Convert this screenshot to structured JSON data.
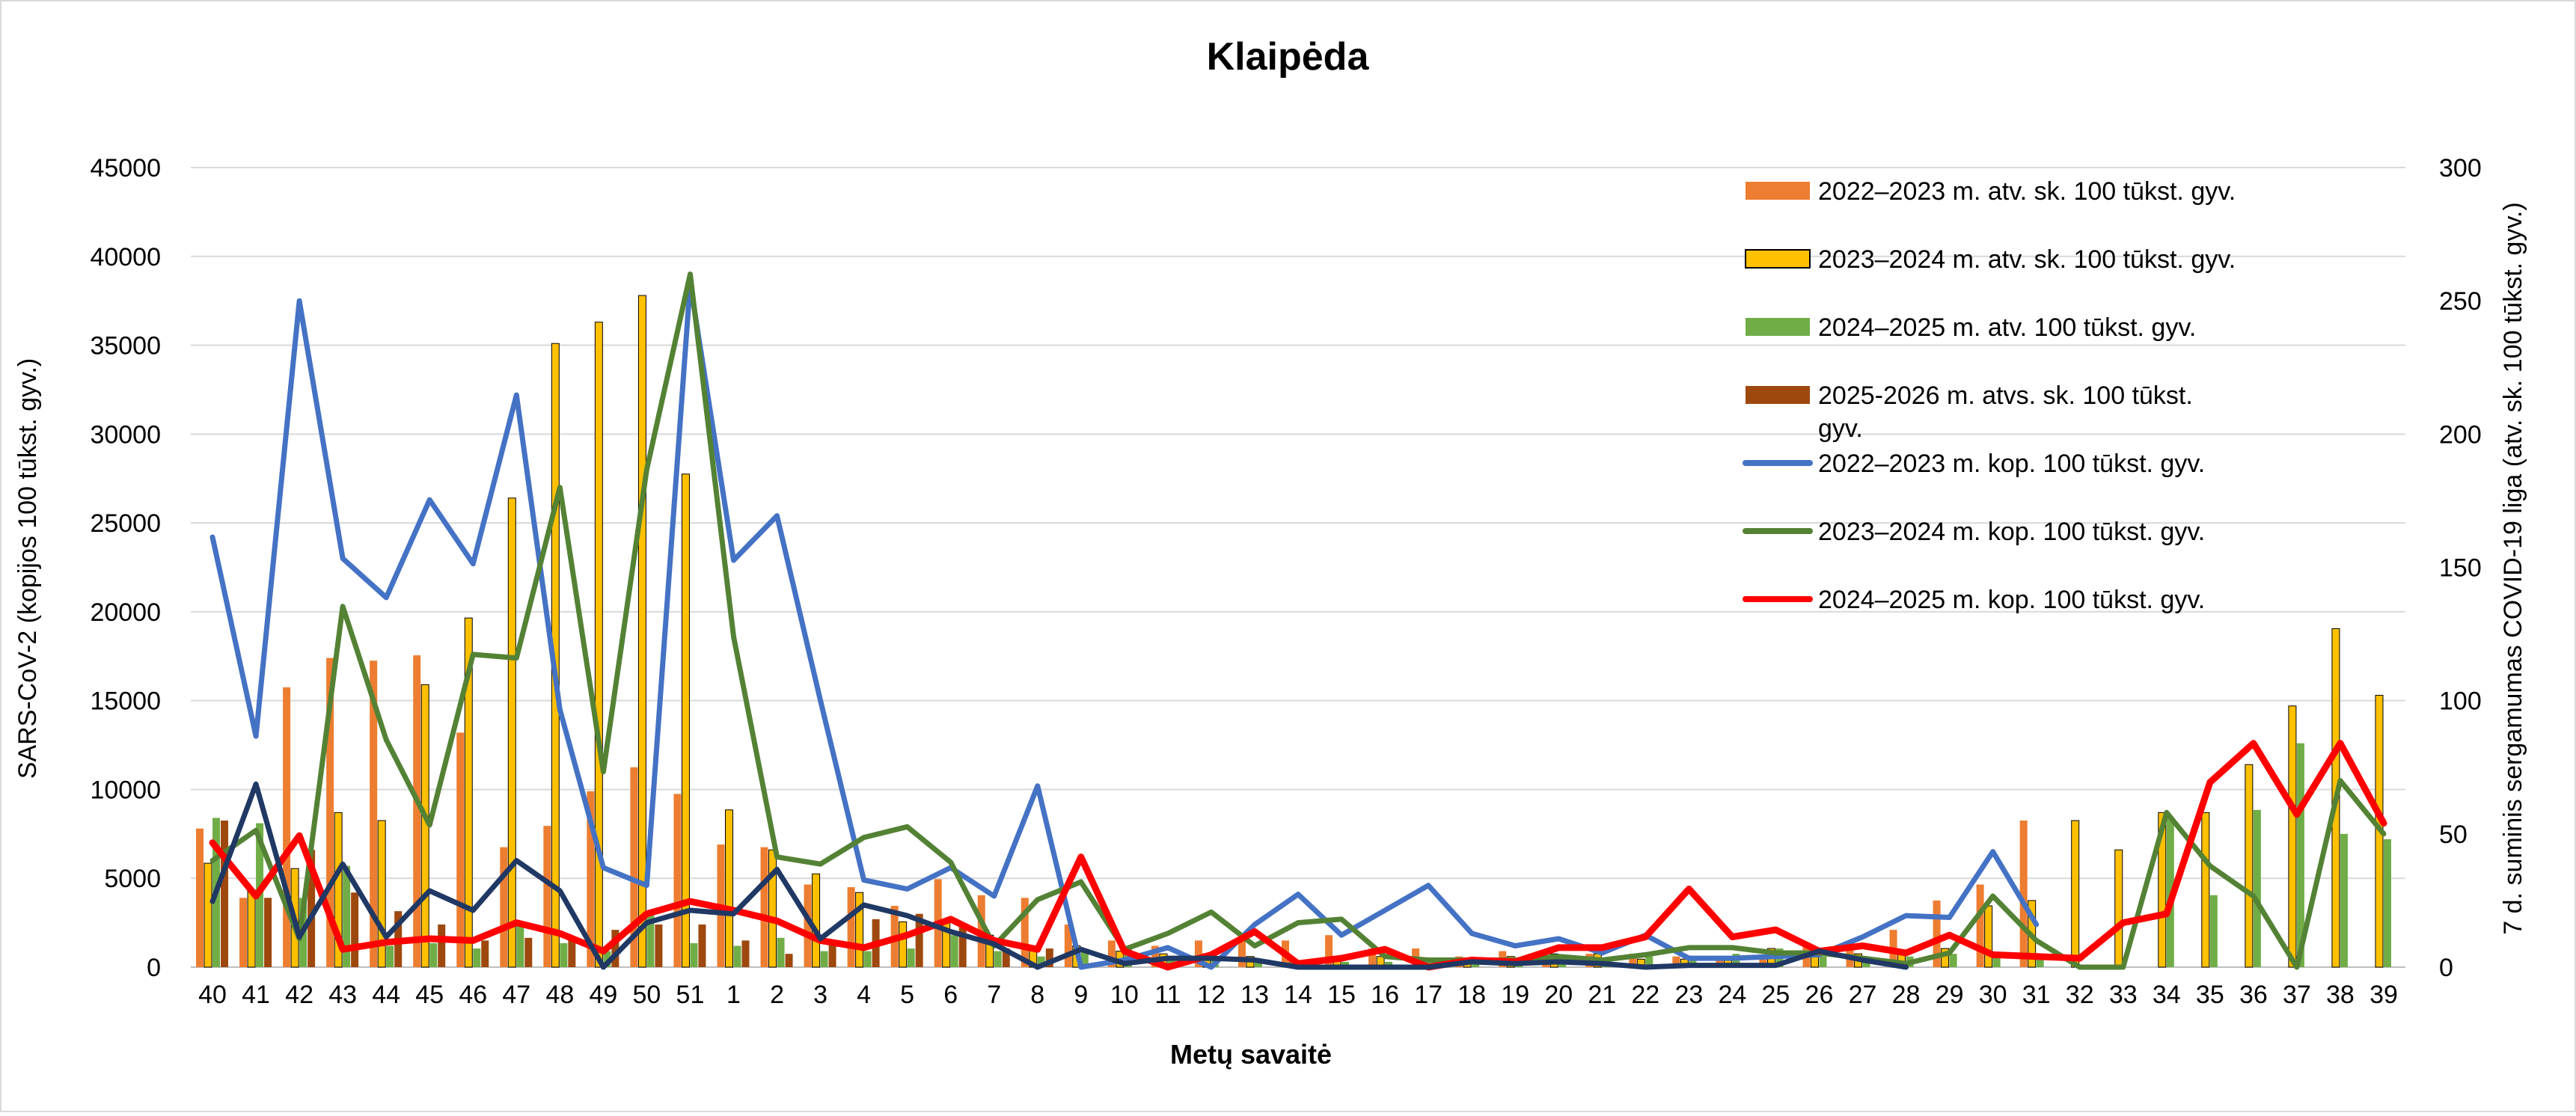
{
  "chart_data": {
    "type": "bar",
    "title": "Klaipėda",
    "xlabel": "Metų savaitė",
    "ylabel_left": "SARS-CoV-2  (kopijos 100 tūkst. gyv.)",
    "ylabel_right": "7 d. suminis sergamumas COVID-19 liga (atv. sk. 100 tūkst. gyv.)",
    "ylim_left": [
      0,
      45000
    ],
    "ylim_right": [
      0,
      300
    ],
    "yticks_left": [
      "0",
      "5000",
      "10000",
      "15000",
      "20000",
      "25000",
      "30000",
      "35000",
      "40000",
      "45000"
    ],
    "yticks_right": [
      "0",
      "50",
      "100",
      "150",
      "200",
      "250",
      "300"
    ],
    "grid": true,
    "legend_position": "top-right",
    "categories": [
      "40",
      "41",
      "42",
      "43",
      "44",
      "45",
      "46",
      "47",
      "48",
      "49",
      "50",
      "51",
      "1",
      "2",
      "3",
      "4",
      "5",
      "6",
      "7",
      "8",
      "9",
      "10",
      "11",
      "12",
      "13",
      "14",
      "15",
      "16",
      "17",
      "18",
      "19",
      "20",
      "21",
      "22",
      "23",
      "24",
      "25",
      "26",
      "27",
      "28",
      "29",
      "30",
      "31",
      "32",
      "33",
      "34",
      "35",
      "36",
      "37",
      "38",
      "39"
    ],
    "bar_series": [
      {
        "name": "2022–2023 m. atv. sk. 100 tūkst. gyv.",
        "color": "#ED7D31",
        "axis": "right",
        "values": [
          52,
          26,
          105,
          116,
          115,
          117,
          88,
          45,
          53,
          66,
          75,
          65,
          46,
          45,
          31,
          30,
          23,
          33,
          27,
          26,
          16,
          10,
          8,
          10,
          11,
          10,
          12,
          7,
          7,
          4,
          6,
          3,
          5,
          5,
          4,
          3,
          3,
          8,
          8,
          14,
          25,
          31,
          55,
          null,
          null,
          null,
          null,
          null,
          null,
          null,
          null
        ]
      },
      {
        "name": "2023–2024 m. atv. sk. 100 tūkst. gyv.",
        "color": "#FFC000",
        "axis": "right",
        "values": [
          39,
          29,
          37,
          58,
          55,
          106,
          131,
          176,
          234,
          242,
          252,
          185,
          59,
          44,
          35,
          28,
          17,
          18,
          12,
          7,
          8,
          6,
          5,
          5,
          4,
          2,
          3,
          4,
          2,
          2,
          4,
          5,
          5,
          3,
          3,
          3,
          7,
          6,
          5,
          6,
          7,
          23,
          25,
          55,
          44,
          58,
          58,
          76,
          98,
          127,
          102
        ]
      },
      {
        "name": "2024–2025 m. atv. 100 tūkst. gyv.",
        "color": "#70AD47",
        "axis": "right",
        "values": [
          56,
          54,
          26,
          38,
          8,
          9,
          7,
          16,
          9,
          6,
          21,
          9,
          8,
          11,
          6,
          6,
          7,
          12,
          6,
          4,
          6,
          8,
          4,
          4,
          3,
          2,
          2,
          2,
          2,
          2,
          2,
          2,
          2,
          4,
          4,
          5,
          7,
          4,
          4,
          4,
          5,
          5,
          5,
          null,
          null,
          56,
          27,
          59,
          84,
          50,
          48
        ]
      },
      {
        "name": "2025-2026 m. atvs. sk. 100 tūkst. gyv.",
        "color": "#9E480E",
        "axis": "right",
        "values": [
          55,
          26,
          44,
          28,
          21,
          16,
          10,
          11,
          10,
          14,
          16,
          16,
          10,
          5,
          9,
          18,
          20,
          15,
          7,
          7,
          null,
          null,
          null,
          null,
          null,
          null,
          null,
          null,
          null,
          null,
          null,
          null,
          null,
          null,
          null,
          null,
          null,
          null,
          null,
          null,
          null,
          null,
          null,
          null,
          null,
          null,
          null,
          null,
          null,
          null,
          null
        ]
      }
    ],
    "line_series": [
      {
        "name": "2022–2023 m. kop. 100 tūkst. gyv.",
        "color": "#4472C4",
        "axis": "left",
        "values": [
          24200,
          13000,
          37500,
          23000,
          20800,
          26300,
          22700,
          32200,
          14500,
          5600,
          4600,
          38500,
          22900,
          25400,
          15000,
          4900,
          4400,
          5600,
          4000,
          10200,
          0,
          400,
          1100,
          0,
          2400,
          4100,
          1800,
          3200,
          4600,
          1900,
          1200,
          1600,
          800,
          1800,
          500,
          500,
          600,
          700,
          1700,
          2900,
          2800,
          6500,
          2400,
          null,
          null,
          null,
          null,
          null,
          null,
          null,
          null
        ]
      },
      {
        "name": "2023–2024 m. kop. 100 tūkst. gyv.",
        "color": "#548235",
        "axis": "left",
        "values": [
          6000,
          7700,
          1600,
          20300,
          12800,
          8000,
          17600,
          17400,
          27000,
          11000,
          28000,
          39000,
          18600,
          6200,
          5800,
          7300,
          7900,
          5900,
          1200,
          3800,
          4800,
          1000,
          1900,
          3100,
          1200,
          2500,
          2700,
          600,
          400,
          400,
          400,
          600,
          400,
          700,
          1100,
          1100,
          800,
          800,
          500,
          200,
          800,
          4000,
          1500,
          0,
          0,
          8700,
          5700,
          4000,
          0,
          10500,
          7500
        ]
      },
      {
        "name": "2024–2025 m. kop. 100 tūkst. gyv.",
        "color": "#FF0000",
        "axis": "left",
        "values": [
          7000,
          4000,
          7400,
          1000,
          1400,
          1600,
          1500,
          2500,
          1900,
          900,
          3000,
          3700,
          3200,
          2600,
          1500,
          1100,
          1800,
          2700,
          1500,
          1000,
          6200,
          900,
          0,
          700,
          2000,
          200,
          500,
          1000,
          0,
          400,
          300,
          1100,
          1100,
          1700,
          4400,
          1700,
          2100,
          900,
          1200,
          800,
          1800,
          700,
          600,
          500,
          2500,
          3000,
          10400,
          12600,
          8600,
          12600,
          8100
        ]
      },
      {
        "name": "2025-2026 m. kop. 100 tūkst. gyv.",
        "color": "#203864",
        "axis": "left",
        "values": [
          3700,
          10300,
          1700,
          5800,
          1700,
          4300,
          3200,
          6000,
          4300,
          0,
          2500,
          3200,
          3000,
          5500,
          1600,
          3500,
          2900,
          2000,
          1300,
          0,
          1000,
          200,
          500,
          500,
          400,
          0,
          0,
          0,
          0,
          300,
          200,
          300,
          200,
          0,
          100,
          100,
          100,
          900,
          400,
          0,
          null,
          null,
          null,
          null,
          null,
          null,
          null,
          null,
          null,
          null,
          null
        ]
      }
    ],
    "legend_entries": [
      "2022–2023 m. atv. sk. 100 tūkst. gyv.",
      "2023–2024 m. atv. sk. 100 tūkst. gyv.",
      "2024–2025 m. atv. 100 tūkst. gyv.",
      "2025-2026 m. atvs. sk. 100 tūkst. gyv.",
      "2022–2023 m. kop. 100 tūkst. gyv.",
      "2023–2024 m. kop. 100 tūkst. gyv.",
      "2024–2025 m. kop. 100 tūkst. gyv."
    ]
  }
}
